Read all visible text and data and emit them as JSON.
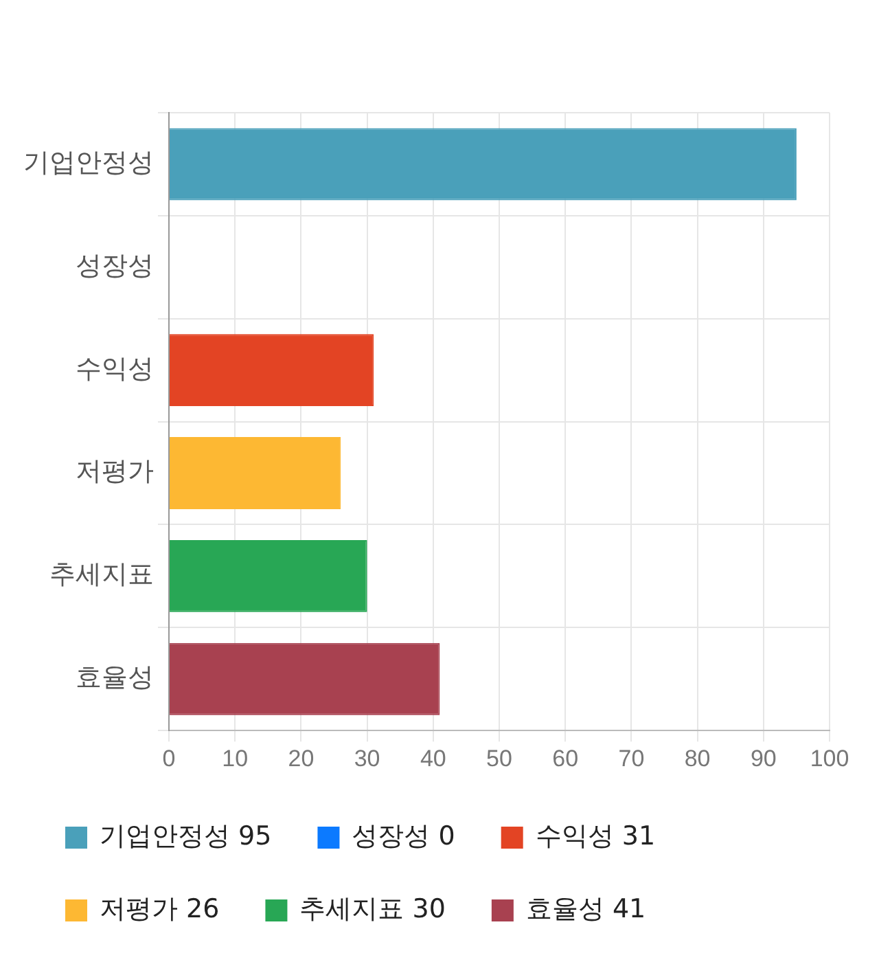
{
  "chart_data": {
    "type": "bar",
    "orientation": "horizontal",
    "stacked": true,
    "categories": [
      "기업안정성",
      "성장성",
      "수익성",
      "저평가",
      "추세지표",
      "효율성"
    ],
    "series": [
      {
        "name": "기업안정성 95",
        "color": "#4aa0ba",
        "values": [
          95,
          null,
          null,
          null,
          null,
          null
        ]
      },
      {
        "name": "성장성 0",
        "color": "#0c7aff",
        "values": [
          null,
          0,
          null,
          null,
          null,
          null
        ]
      },
      {
        "name": "수익성 31",
        "color": "#e34424",
        "values": [
          null,
          null,
          31,
          null,
          null,
          null
        ]
      },
      {
        "name": "저평가 26",
        "color": "#fdb833",
        "values": [
          null,
          null,
          null,
          26,
          null,
          null
        ]
      },
      {
        "name": "추세지표 30",
        "color": "#28a755",
        "values": [
          null,
          null,
          null,
          null,
          30,
          null
        ]
      },
      {
        "name": "효율성 41",
        "color": "#a84150",
        "values": [
          null,
          null,
          null,
          null,
          null,
          41
        ]
      }
    ],
    "xlim": [
      0,
      100
    ],
    "xticks": [
      0,
      10,
      20,
      30,
      40,
      50,
      60,
      70,
      80,
      90,
      100
    ],
    "grid": true,
    "legend": "bottom"
  }
}
